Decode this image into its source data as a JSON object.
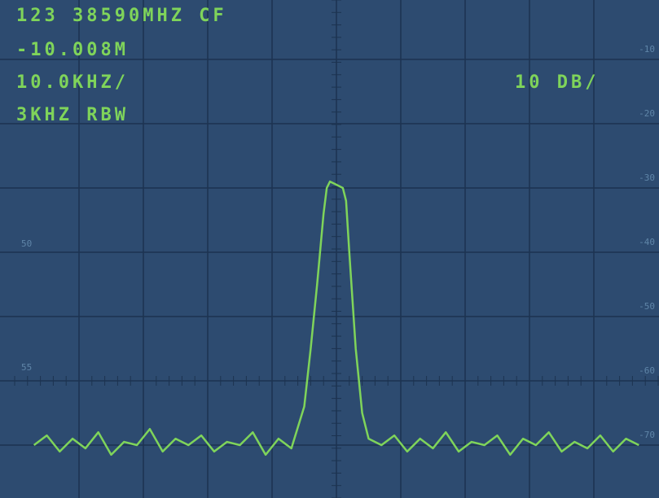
{
  "chart_data": {
    "type": "line",
    "annotations": [
      "123 38590MHZ CF",
      "-10.008M",
      "10.0KHZ/",
      "10 DB/",
      "3KHZ RBW"
    ],
    "left_labels": [
      "50",
      "55"
    ],
    "x": [
      -47,
      -45,
      -43,
      -41,
      -39,
      -37,
      -35,
      -33,
      -31,
      -29,
      -27,
      -25,
      -23,
      -21,
      -19,
      -17,
      -15,
      -13,
      -11,
      -9,
      -7,
      -5,
      -4,
      -3,
      -2,
      -1.5,
      -1,
      0,
      1,
      1.5,
      2,
      3,
      4,
      5,
      7,
      9,
      11,
      13,
      15,
      17,
      19,
      21,
      23,
      25,
      27,
      29,
      31,
      33,
      35,
      37,
      39,
      41,
      43,
      45,
      47
    ],
    "series": [
      {
        "color": "#7fd45a",
        "values": [
          -70,
          -68.5,
          -71,
          -69,
          -70.5,
          -68,
          -71.5,
          -69.5,
          -70,
          -67.5,
          -71,
          -69,
          -70,
          -68.5,
          -71,
          -69.5,
          -70,
          -68,
          -71.5,
          -69,
          -70.5,
          -64,
          -55,
          -45,
          -34,
          -30,
          -29,
          -29.5,
          -30,
          -32,
          -40,
          -55,
          -65,
          -69,
          -70,
          -68.5,
          -71,
          -69,
          -70.5,
          -68,
          -71,
          -69.5,
          -70,
          -68.5,
          -71.5,
          -69,
          -70,
          -68,
          -71,
          -69.5,
          -70.5,
          -68.5,
          -71,
          -69,
          -70
        ]
      }
    ],
    "xlim": [
      -50,
      50
    ],
    "ylim": [
      -80,
      0
    ],
    "yticks": [
      -10,
      -20,
      -30,
      -40,
      -50,
      -60,
      -70
    ],
    "grid": true
  }
}
